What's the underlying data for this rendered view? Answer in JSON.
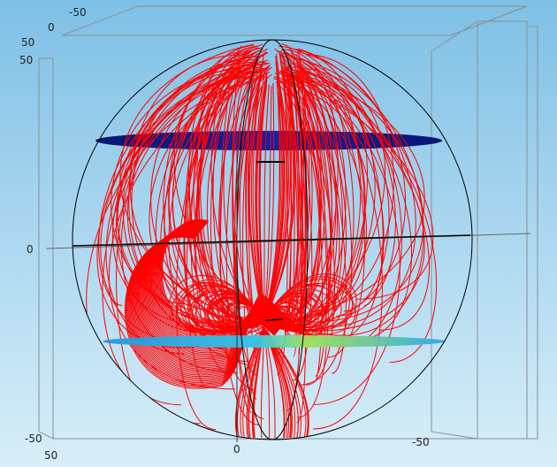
{
  "figure": {
    "background_top": "#7ec0e6",
    "background_bottom": "#d8eef8",
    "box_color": "#8a8f95",
    "sphere_outline_color": "#000000",
    "field_line_color": "#ff0000",
    "upper_coil_color": "#0a1a8c",
    "lower_plane_color": "#2aa8e8",
    "lower_plane_highlight": "#8fe04a"
  },
  "ticks": {
    "top_left_neg50": "-50",
    "top_left_0": "0",
    "top_left_50": "50",
    "left_50": "50",
    "left_0": "0",
    "left_neg50": "-50",
    "bottom_50": "50",
    "bottom_0": "0",
    "bottom_neg50": "-50"
  }
}
